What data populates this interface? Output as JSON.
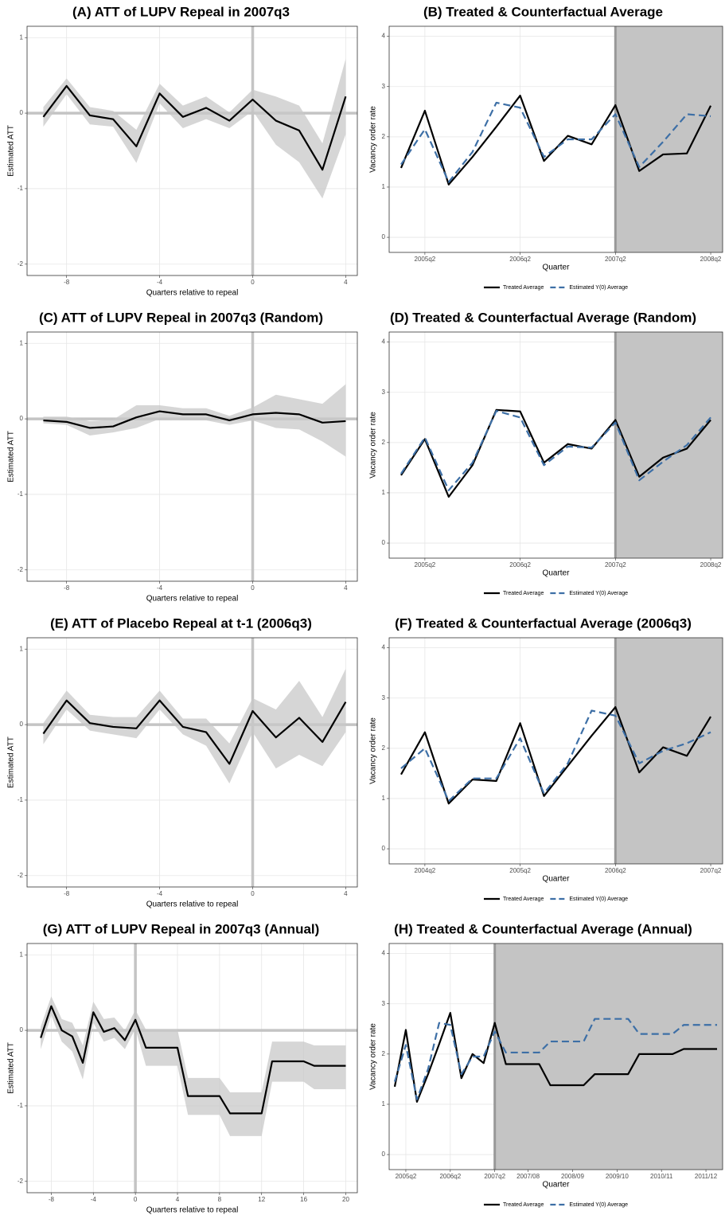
{
  "chart_data": [
    {
      "type": "line",
      "title": "(A) ATT of LUPV Repeal in 2007q3",
      "x_label": "Quarters relative to repeal",
      "y_label": "Estimated ATT",
      "x": [
        -9,
        -8,
        -7,
        -6,
        -5,
        -4,
        -3,
        -2,
        -1,
        0,
        1,
        2,
        3,
        4
      ],
      "series": [
        {
          "color": "#000000",
          "values": [
            -0.05,
            0.36,
            -0.03,
            -0.08,
            -0.44,
            0.26,
            -0.05,
            0.07,
            -0.1,
            0.18,
            -0.1,
            -0.23,
            -0.75,
            0.22
          ]
        }
      ],
      "ci_lower": [
        -0.18,
        0.25,
        -0.15,
        -0.18,
        -0.66,
        0.13,
        -0.2,
        -0.08,
        -0.2,
        0.03,
        -0.42,
        -0.65,
        -1.13,
        -0.28
      ],
      "ci_upper": [
        0.08,
        0.46,
        0.08,
        0.03,
        -0.22,
        0.39,
        0.1,
        0.22,
        0.01,
        0.31,
        0.22,
        0.1,
        -0.4,
        0.72
      ],
      "band_color": "#c8c8c8",
      "xlim": [
        -9.7,
        4.5
      ],
      "ylim": [
        -2.15,
        1.15
      ],
      "xticks": [
        -8,
        -4,
        0,
        4
      ],
      "yticks": [
        -2,
        -1,
        0,
        1
      ],
      "hline": 0,
      "vline": 0,
      "grid": true
    },
    {
      "type": "line",
      "title": "(B) Treated & Counterfactual Average",
      "x_label": "Quarter",
      "y_label": "Vacancy order rate",
      "categories": [
        null,
        "2005q2",
        null,
        null,
        null,
        "2006q2",
        null,
        null,
        null,
        "2007q2",
        null,
        null,
        null,
        "2008q2"
      ],
      "series": [
        {
          "name": "Treated Average",
          "color": "#000000",
          "dash": false,
          "values": [
            1.38,
            2.52,
            1.05,
            1.6,
            2.2,
            2.82,
            1.52,
            2.02,
            1.85,
            2.63,
            1.32,
            1.65,
            1.67,
            2.62
          ]
        },
        {
          "name": "Estimated Y(0) Average",
          "color": "#3d6fa6",
          "dash": true,
          "values": [
            1.45,
            2.15,
            1.1,
            1.7,
            2.68,
            2.58,
            1.6,
            1.95,
            1.95,
            2.45,
            1.4,
            1.9,
            2.45,
            2.41
          ]
        }
      ],
      "ylim": [
        -0.3,
        4.2
      ],
      "yticks": [
        0,
        1,
        2,
        3,
        4
      ],
      "shade_start": 9,
      "shade_color": "#c4c4c4",
      "grid": true,
      "legend": "bottom"
    },
    {
      "type": "line",
      "title": "(C) ATT of LUPV Repeal in 2007q3 (Random)",
      "x_label": "Quarters relative to repeal",
      "y_label": "Estimated ATT",
      "x": [
        -9,
        -8,
        -7,
        -6,
        -5,
        -4,
        -3,
        -2,
        -1,
        0,
        1,
        2,
        3,
        4
      ],
      "series": [
        {
          "color": "#000000",
          "values": [
            -0.02,
            -0.04,
            -0.12,
            -0.1,
            0.02,
            0.1,
            0.06,
            0.06,
            -0.02,
            0.06,
            0.08,
            0.06,
            -0.05,
            -0.03
          ]
        }
      ],
      "ci_lower": [
        -0.06,
        -0.08,
        -0.22,
        -0.18,
        -0.12,
        0.0,
        -0.02,
        -0.02,
        -0.08,
        -0.02,
        -0.12,
        -0.14,
        -0.3,
        -0.5
      ],
      "ci_upper": [
        0.03,
        0.03,
        -0.03,
        -0.01,
        0.18,
        0.18,
        0.14,
        0.14,
        0.04,
        0.15,
        0.32,
        0.26,
        0.2,
        0.46
      ],
      "band_color": "#c8c8c8",
      "xlim": [
        -9.7,
        4.5
      ],
      "ylim": [
        -2.15,
        1.15
      ],
      "xticks": [
        -8,
        -4,
        0,
        4
      ],
      "yticks": [
        -2,
        -1,
        0,
        1
      ],
      "hline": 0,
      "vline": 0,
      "grid": true
    },
    {
      "type": "line",
      "title": "(D) Treated & Counterfactual Average (Random)",
      "x_label": "Quarter",
      "y_label": "Vacancy order rate",
      "categories": [
        null,
        "2005q2",
        null,
        null,
        null,
        "2006q2",
        null,
        null,
        null,
        "2007q2",
        null,
        null,
        null,
        "2008q2"
      ],
      "series": [
        {
          "name": "Treated Average",
          "color": "#000000",
          "dash": false,
          "values": [
            1.35,
            2.07,
            0.92,
            1.55,
            2.65,
            2.62,
            1.6,
            1.97,
            1.88,
            2.45,
            1.32,
            1.7,
            1.88,
            2.45
          ]
        },
        {
          "name": "Estimated Y(0) Average",
          "color": "#3d6fa6",
          "dash": true,
          "values": [
            1.38,
            2.1,
            1.05,
            1.6,
            2.63,
            2.5,
            1.55,
            1.92,
            1.9,
            2.4,
            1.25,
            1.62,
            1.95,
            2.5
          ]
        }
      ],
      "ylim": [
        -0.3,
        4.2
      ],
      "yticks": [
        0,
        1,
        2,
        3,
        4
      ],
      "shade_start": 9,
      "shade_color": "#c4c4c4",
      "grid": true,
      "legend": "bottom"
    },
    {
      "type": "line",
      "title": "(E) ATT of Placebo Repeal at t-1 (2006q3)",
      "x_label": "Quarters relative to repeal",
      "y_label": "Estimated ATT",
      "x": [
        -9,
        -8,
        -7,
        -6,
        -5,
        -4,
        -3,
        -2,
        -1,
        0,
        1,
        2,
        3,
        4
      ],
      "series": [
        {
          "color": "#000000",
          "values": [
            -0.12,
            0.32,
            0.02,
            -0.03,
            -0.05,
            0.32,
            -0.03,
            -0.1,
            -0.52,
            0.18,
            -0.17,
            0.09,
            -0.23,
            0.3
          ]
        }
      ],
      "ci_lower": [
        -0.26,
        0.2,
        -0.08,
        -0.13,
        -0.18,
        0.2,
        -0.13,
        -0.28,
        -0.78,
        -0.1,
        -0.58,
        -0.4,
        -0.55,
        -0.1
      ],
      "ci_upper": [
        0.02,
        0.45,
        0.13,
        0.1,
        0.1,
        0.45,
        0.08,
        0.08,
        -0.25,
        0.35,
        0.2,
        0.58,
        0.1,
        0.74
      ],
      "band_color": "#c8c8c8",
      "xlim": [
        -9.7,
        4.5
      ],
      "ylim": [
        -2.15,
        1.15
      ],
      "xticks": [
        -8,
        -4,
        0,
        4
      ],
      "yticks": [
        -2,
        -1,
        0,
        1
      ],
      "hline": 0,
      "vline": 0,
      "grid": true
    },
    {
      "type": "line",
      "title": "(F) Treated & Counterfactual Average (2006q3)",
      "x_label": "Quarter",
      "y_label": "Vacancy order rate",
      "categories": [
        null,
        "2004q2",
        null,
        null,
        null,
        "2005q2",
        null,
        null,
        null,
        "2006q2",
        null,
        null,
        null,
        "2007q2"
      ],
      "series": [
        {
          "name": "Treated Average",
          "color": "#000000",
          "dash": false,
          "values": [
            1.48,
            2.32,
            0.9,
            1.38,
            1.35,
            2.5,
            1.05,
            1.65,
            2.25,
            2.82,
            1.52,
            2.02,
            1.85,
            2.63
          ]
        },
        {
          "name": "Estimated Y(0) Average",
          "color": "#3d6fa6",
          "dash": true,
          "values": [
            1.6,
            2.0,
            0.95,
            1.4,
            1.4,
            2.2,
            1.1,
            1.7,
            2.75,
            2.65,
            1.7,
            1.95,
            2.1,
            2.32
          ]
        }
      ],
      "ylim": [
        -0.3,
        4.2
      ],
      "yticks": [
        0,
        1,
        2,
        3,
        4
      ],
      "shade_start": 9,
      "shade_color": "#c4c4c4",
      "grid": true,
      "legend": "bottom"
    },
    {
      "type": "line",
      "title": "(G) ATT of LUPV Repeal in 2007q3 (Annual)",
      "x_label": "Quarters relative to repeal",
      "y_label": "Estimated ATT",
      "x": [
        -9,
        -8,
        -7,
        -6,
        -5,
        -4,
        -3,
        -2,
        -1,
        0,
        1,
        2,
        3,
        4,
        5,
        6,
        7,
        8,
        9,
        10,
        11,
        12,
        13,
        14,
        15,
        16,
        17,
        18,
        19,
        20
      ],
      "series": [
        {
          "color": "#000000",
          "values": [
            -0.1,
            0.32,
            0,
            -0.08,
            -0.43,
            0.24,
            -0.02,
            0.03,
            -0.13,
            0.14,
            -0.23,
            -0.23,
            -0.23,
            -0.23,
            -0.87,
            -0.87,
            -0.87,
            -0.87,
            -1.1,
            -1.1,
            -1.1,
            -1.1,
            -0.41,
            -0.41,
            -0.41,
            -0.41,
            -0.47,
            -0.47,
            -0.47,
            -0.47
          ]
        }
      ],
      "ci_lower": [
        -0.25,
        0.2,
        -0.15,
        -0.28,
        -0.65,
        0.1,
        -0.15,
        -0.1,
        -0.25,
        0.02,
        -0.47,
        -0.47,
        -0.47,
        -0.47,
        -1.12,
        -1.12,
        -1.12,
        -1.12,
        -1.4,
        -1.4,
        -1.4,
        -1.4,
        -0.68,
        -0.68,
        -0.68,
        -0.68,
        -0.78,
        -0.78,
        -0.78,
        -0.78
      ],
      "ci_upper": [
        0.05,
        0.45,
        0.15,
        0.1,
        -0.2,
        0.38,
        0.15,
        0.17,
        0,
        0.27,
        0.01,
        0.01,
        0.01,
        0.01,
        -0.63,
        -0.63,
        -0.63,
        -0.63,
        -0.82,
        -0.82,
        -0.82,
        -0.82,
        -0.15,
        -0.15,
        -0.15,
        -0.15,
        -0.2,
        -0.2,
        -0.2,
        -0.2
      ],
      "band_color": "#c8c8c8",
      "xlim": [
        -10.3,
        21.1
      ],
      "ylim": [
        -2.15,
        1.15
      ],
      "xticks": [
        -8,
        -4,
        0,
        4,
        8,
        12,
        16,
        20
      ],
      "yticks": [
        -2,
        -1,
        0,
        1
      ],
      "hline": 0,
      "vline": 0,
      "grid": true
    },
    {
      "type": "line",
      "title": "(H) Treated & Counterfactual Average (Annual)",
      "x_label": "Quarter",
      "y_label": "Vacancy order rate",
      "categories": [
        null,
        "2005q2",
        null,
        null,
        null,
        "2006q2",
        null,
        null,
        null,
        "2007q2",
        null,
        null,
        "2007/08",
        null,
        null,
        null,
        "2008/09",
        null,
        null,
        null,
        "2009/10",
        null,
        null,
        null,
        "2010/11",
        null,
        null,
        null,
        "2011/12",
        null
      ],
      "series": [
        {
          "name": "Treated Average",
          "color": "#000000",
          "dash": false,
          "values": [
            1.35,
            2.48,
            1.05,
            1.6,
            2.2,
            2.82,
            1.52,
            2.0,
            1.82,
            2.62,
            1.8,
            1.8,
            1.8,
            1.8,
            1.38,
            1.38,
            1.38,
            1.38,
            1.6,
            1.6,
            1.6,
            1.6,
            2.0,
            2.0,
            2.0,
            2.0,
            2.1,
            2.1,
            2.1,
            2.1
          ]
        },
        {
          "name": "Estimated Y(0) Average",
          "color": "#3d6fa6",
          "dash": true,
          "values": [
            1.45,
            2.18,
            1.1,
            1.7,
            2.62,
            2.58,
            1.6,
            1.95,
            1.95,
            2.45,
            2.03,
            2.03,
            2.03,
            2.03,
            2.25,
            2.25,
            2.25,
            2.25,
            2.7,
            2.7,
            2.7,
            2.7,
            2.4,
            2.4,
            2.4,
            2.4,
            2.58,
            2.58,
            2.58,
            2.58
          ]
        }
      ],
      "ylim": [
        -0.3,
        4.2
      ],
      "yticks": [
        0,
        1,
        2,
        3,
        4
      ],
      "shade_start": 9,
      "shade_color": "#c4c4c4",
      "grid": true,
      "legend": "bottom"
    }
  ]
}
